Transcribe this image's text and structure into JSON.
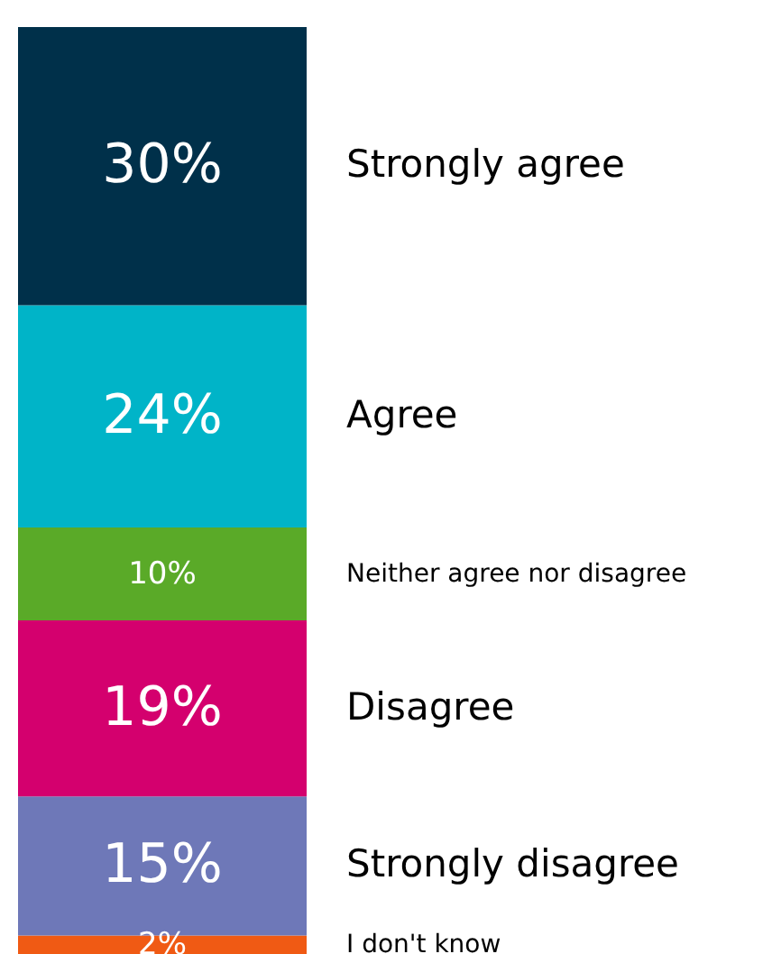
{
  "chart_data": {
    "type": "bar",
    "stacked": true,
    "categories": [
      null
    ],
    "series": [
      {
        "name": "I don't know",
        "color": "#f05a14",
        "values": [
          2
        ],
        "value_labels": [
          "2%"
        ]
      },
      {
        "name": "Strongly disagree",
        "color": "#6e78b8",
        "values": [
          15
        ],
        "value_labels": [
          "15%"
        ]
      },
      {
        "name": "Disagree",
        "color": "#d4006e",
        "values": [
          19
        ],
        "value_labels": [
          "19%"
        ]
      },
      {
        "name": "Neither agree nor disagree",
        "color": "#5aaa28",
        "values": [
          10
        ],
        "value_labels": [
          "10%"
        ]
      },
      {
        "name": "Agree",
        "color": "#00b4c8",
        "values": [
          24
        ],
        "value_labels": [
          "24%"
        ]
      },
      {
        "name": "Strongly agree",
        "color": "#00304a",
        "values": [
          30
        ],
        "value_labels": [
          "30%"
        ]
      }
    ]
  }
}
